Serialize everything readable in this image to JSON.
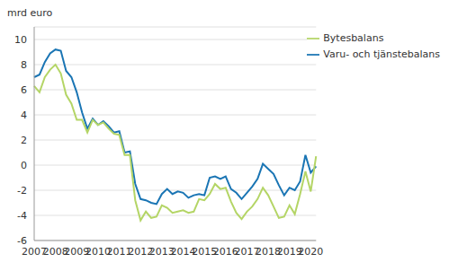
{
  "chart_data": {
    "type": "line",
    "y_label": "mrd euro",
    "categories": [
      "2007",
      null,
      null,
      null,
      "2008",
      null,
      null,
      null,
      "2009",
      null,
      null,
      null,
      "2010",
      null,
      null,
      null,
      "2011",
      null,
      null,
      null,
      "2012",
      null,
      null,
      null,
      "2013",
      null,
      null,
      null,
      "2014",
      null,
      null,
      null,
      "2015",
      null,
      null,
      null,
      "2016",
      null,
      null,
      null,
      "2017",
      null,
      null,
      null,
      "2018",
      null,
      null,
      null,
      "2019",
      null,
      null,
      null,
      "2020",
      null
    ],
    "series": [
      {
        "name": "Varu- och tjänstebalans",
        "color": "#1a75b4",
        "values": [
          7.0,
          7.2,
          8.2,
          8.9,
          9.2,
          9.1,
          7.5,
          7.0,
          5.8,
          4.2,
          2.9,
          3.7,
          3.2,
          3.5,
          3.1,
          2.6,
          2.7,
          1.0,
          1.1,
          -1.5,
          -2.7,
          -2.8,
          -3.0,
          -3.1,
          -2.3,
          -1.9,
          -2.3,
          -2.1,
          -2.2,
          -2.6,
          -2.4,
          -2.3,
          -2.4,
          -1.0,
          -0.9,
          -1.1,
          -0.9,
          -1.9,
          -2.2,
          -2.7,
          -2.2,
          -1.7,
          -1.1,
          0.1,
          -0.3,
          -0.7,
          -1.6,
          -2.4,
          -1.8,
          -2.0,
          -1.3,
          0.8,
          -0.6,
          -0.1
        ]
      },
      {
        "name": "Bytesbalans",
        "color": "#b4d566",
        "values": [
          6.3,
          5.8,
          7.0,
          7.6,
          8.0,
          7.3,
          5.6,
          4.9,
          3.6,
          3.6,
          2.6,
          3.6,
          3.2,
          3.4,
          2.9,
          2.5,
          2.4,
          0.8,
          0.8,
          -2.8,
          -4.4,
          -3.7,
          -4.2,
          -4.1,
          -3.2,
          -3.4,
          -3.8,
          -3.7,
          -3.6,
          -3.8,
          -3.7,
          -2.7,
          -2.8,
          -2.3,
          -1.5,
          -1.9,
          -1.8,
          -2.9,
          -3.8,
          -4.3,
          -3.7,
          -3.3,
          -2.7,
          -1.8,
          -2.4,
          -3.3,
          -4.2,
          -4.1,
          -3.2,
          -3.9,
          -2.3,
          -0.5,
          -2.1,
          0.7
        ]
      }
    ],
    "ylim": [
      -6,
      11
    ],
    "yticks": [
      -6,
      -4,
      -2,
      0,
      2,
      4,
      6,
      8,
      10
    ],
    "grid": true,
    "legend": "upper right"
  }
}
